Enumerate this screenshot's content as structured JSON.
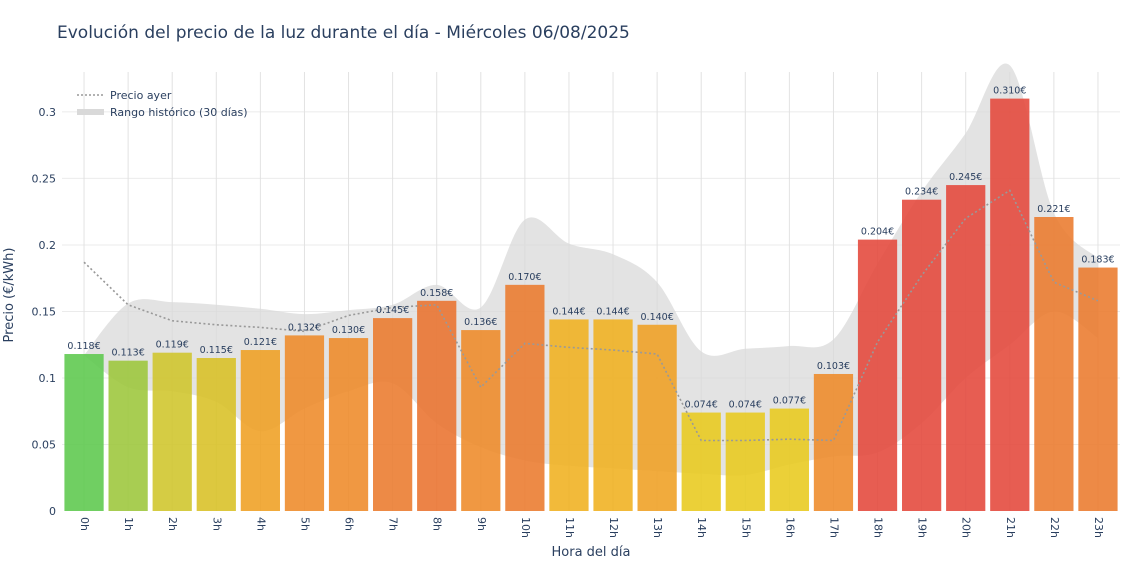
{
  "chart_data": {
    "type": "bar",
    "title": "Evolución del precio de la luz durante el día - Miércoles 06/08/2025",
    "xlabel": "Hora del día",
    "ylabel": "Precio (€/kWh)",
    "ylim": [
      0,
      0.33
    ],
    "yticks": [
      0,
      0.05,
      0.1,
      0.15,
      0.2,
      0.25,
      0.3
    ],
    "ytick_labels": [
      "0",
      "0.05",
      "0.1",
      "0.15",
      "0.2",
      "0.25",
      "0.3"
    ],
    "categories": [
      "0h",
      "1h",
      "2h",
      "3h",
      "4h",
      "5h",
      "6h",
      "7h",
      "8h",
      "9h",
      "10h",
      "11h",
      "12h",
      "13h",
      "14h",
      "15h",
      "16h",
      "17h",
      "18h",
      "19h",
      "20h",
      "21h",
      "22h",
      "23h"
    ],
    "values": [
      0.118,
      0.113,
      0.119,
      0.115,
      0.121,
      0.132,
      0.13,
      0.145,
      0.158,
      0.136,
      0.17,
      0.144,
      0.144,
      0.14,
      0.074,
      0.074,
      0.077,
      0.103,
      0.204,
      0.234,
      0.245,
      0.31,
      0.221,
      0.183
    ],
    "value_labels": [
      "0.118€",
      "0.113€",
      "0.119€",
      "0.115€",
      "0.121€",
      "0.132€",
      "0.130€",
      "0.145€",
      "0.158€",
      "0.136€",
      "0.170€",
      "0.144€",
      "0.144€",
      "0.140€",
      "0.074€",
      "0.074€",
      "0.077€",
      "0.103€",
      "0.204€",
      "0.234€",
      "0.245€",
      "0.310€",
      "0.221€",
      "0.183€"
    ],
    "bar_colors": [
      "#5cc84c",
      "#9cc63a",
      "#cfc52a",
      "#d8c024",
      "#ef9f22",
      "#ee8a28",
      "#ee8a28",
      "#eb7a2c",
      "#e9722e",
      "#ee8a28",
      "#eb7a2c",
      "#f0b11f",
      "#f0b11f",
      "#ef9f22",
      "#e8c91c",
      "#e8c91c",
      "#e8c91c",
      "#ee8a28",
      "#e4473a",
      "#e4473a",
      "#e4473a",
      "#e4473a",
      "#eb7a2c",
      "#eb7a2c"
    ],
    "series": [
      {
        "name": "Precio ayer",
        "type": "line",
        "style": "dotted",
        "color": "#999999",
        "values": [
          0.187,
          0.155,
          0.143,
          0.14,
          0.138,
          0.135,
          0.147,
          0.153,
          0.155,
          0.093,
          0.126,
          0.123,
          0.121,
          0.118,
          0.053,
          0.053,
          0.054,
          0.053,
          0.127,
          0.177,
          0.22,
          0.241,
          0.172,
          0.158
        ]
      },
      {
        "name": "Rango histórico (30 días)",
        "type": "band",
        "color": "#d9d9d9",
        "upper": [
          0.117,
          0.156,
          0.157,
          0.155,
          0.152,
          0.148,
          0.151,
          0.155,
          0.17,
          0.153,
          0.219,
          0.201,
          0.193,
          0.172,
          0.12,
          0.122,
          0.124,
          0.129,
          0.186,
          0.24,
          0.284,
          0.335,
          0.224,
          0.19
        ],
        "lower": [
          0.117,
          0.093,
          0.09,
          0.082,
          0.06,
          0.077,
          0.09,
          0.096,
          0.066,
          0.048,
          0.038,
          0.034,
          0.032,
          0.03,
          0.028,
          0.027,
          0.035,
          0.041,
          0.044,
          0.066,
          0.1,
          0.125,
          0.15,
          0.13
        ]
      }
    ],
    "legend": {
      "placement": "top-left",
      "items": [
        {
          "label": "Precio ayer",
          "kind": "dotted-line"
        },
        {
          "label": "Rango histórico (30 días)",
          "kind": "band"
        }
      ]
    },
    "grid": true
  }
}
